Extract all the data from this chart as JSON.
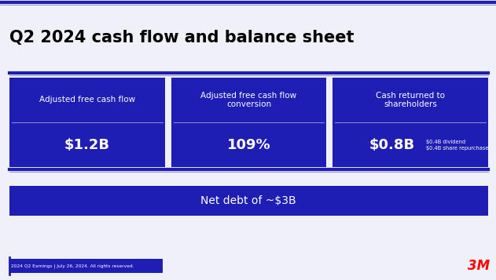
{
  "title": "Q2 2024 cash flow and balance sheet",
  "title_fontsize": 15,
  "title_color": "#000000",
  "background_color": "#f0f0f8",
  "card_bg_color": "#1e1eb4",
  "divider_line_color": "#1e1eb4",
  "top_line_color": "#1e1eb4",
  "top_line_thin_color": "#9999cc",
  "cards": [
    {
      "label": "Adjusted free cash flow",
      "value": "$1.2B",
      "note": ""
    },
    {
      "label": "Adjusted free cash flow\nconversion",
      "value": "109%",
      "note": ""
    },
    {
      "label": "Cash returned to\nshareholders",
      "value": "$0.8B",
      "note": "$0.4B dividend\n$0.4B share repurchase"
    }
  ],
  "net_debt_text": "Net debt of ~$3B",
  "net_debt_bg": "#1e1eb4",
  "footer_text": "2024 Q2 Earnings | July 26, 2024. All rights reserved.",
  "footer_bg": "#1e1eb4",
  "footer_color": "#ffffff",
  "logo_text": "3M",
  "logo_color": "#ff0000"
}
